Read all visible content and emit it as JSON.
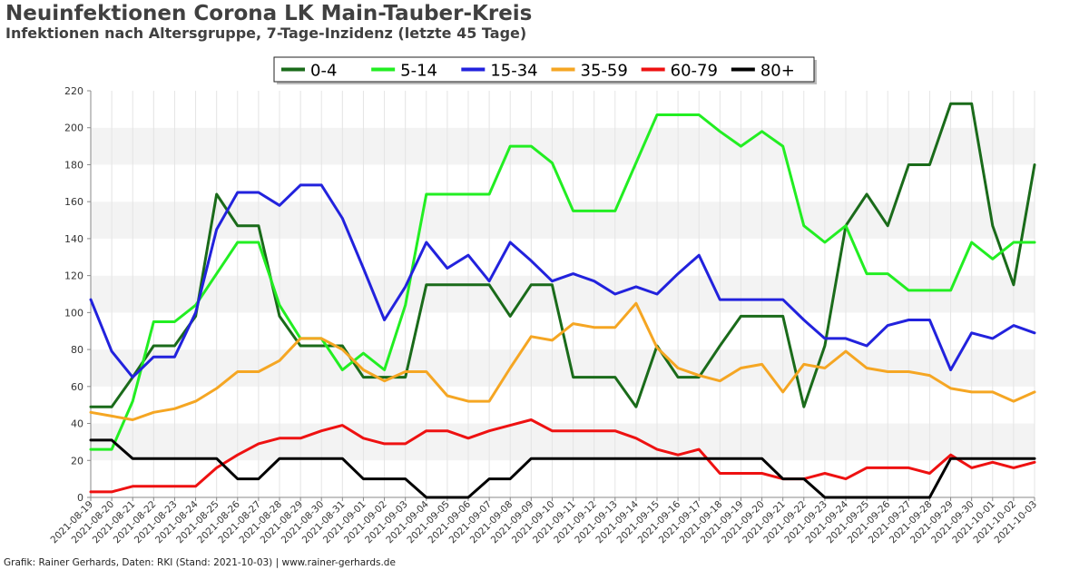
{
  "header": {
    "title": "Neuinfektionen Corona LK Main-Tauber-Kreis",
    "subtitle": "Infektionen nach Altersgruppe, 7-Tage-Inzidenz (letzte 45 Tage)"
  },
  "footer": {
    "credit": "Grafik: Rainer Gerhards, Daten: RKI (Stand: 2021-10-03) | www.rainer-gerhards.de"
  },
  "chart_data": {
    "type": "line",
    "title": "Neuinfektionen Corona LK Main-Tauber-Kreis",
    "subtitle": "Infektionen nach Altersgruppe, 7-Tage-Inzidenz (letzte 45 Tage)",
    "ylim": [
      0,
      220
    ],
    "yticks": [
      0,
      20,
      40,
      60,
      80,
      100,
      120,
      140,
      160,
      180,
      200,
      220
    ],
    "grid": "alternating horizontal bands",
    "legend_position": "top-center",
    "x": [
      "2021-08-19",
      "2021-08-20",
      "2021-08-21",
      "2021-08-22",
      "2021-08-23",
      "2021-08-24",
      "2021-08-25",
      "2021-08-26",
      "2021-08-27",
      "2021-08-28",
      "2021-08-29",
      "2021-08-30",
      "2021-08-31",
      "2021-09-01",
      "2021-09-02",
      "2021-09-03",
      "2021-09-04",
      "2021-09-05",
      "2021-09-06",
      "2021-09-07",
      "2021-09-08",
      "2021-09-09",
      "2021-09-10",
      "2021-09-11",
      "2021-09-12",
      "2021-09-13",
      "2021-09-14",
      "2021-09-15",
      "2021-09-16",
      "2021-09-17",
      "2021-09-18",
      "2021-09-19",
      "2021-09-20",
      "2021-09-21",
      "2021-09-22",
      "2021-09-23",
      "2021-09-24",
      "2021-09-25",
      "2021-09-26",
      "2021-09-27",
      "2021-09-28",
      "2021-09-29",
      "2021-09-30",
      "2021-10-01",
      "2021-10-02",
      "2021-10-03"
    ],
    "series": [
      {
        "name": "0-4",
        "color": "#1a6b1a",
        "values": [
          49,
          49,
          65,
          82,
          82,
          98,
          164,
          147,
          147,
          98,
          82,
          82,
          82,
          65,
          65,
          65,
          115,
          115,
          115,
          115,
          98,
          115,
          115,
          65,
          65,
          65,
          49,
          82,
          65,
          65,
          82,
          98,
          98,
          98,
          49,
          82,
          147,
          164,
          147,
          180,
          180,
          213,
          213,
          147,
          115,
          180
        ]
      },
      {
        "name": "5-14",
        "color": "#22ee22",
        "values": [
          26,
          26,
          52,
          95,
          95,
          104,
          121,
          138,
          138,
          104,
          86,
          86,
          69,
          78,
          69,
          104,
          164,
          164,
          164,
          164,
          190,
          190,
          181,
          155,
          155,
          155,
          181,
          207,
          207,
          207,
          198,
          190,
          198,
          190,
          147,
          138,
          147,
          121,
          121,
          112,
          112,
          112,
          138,
          129,
          138,
          138
        ]
      },
      {
        "name": "15-34",
        "color": "#2222dd",
        "values": [
          107,
          79,
          65,
          76,
          76,
          100,
          145,
          165,
          165,
          158,
          169,
          169,
          151,
          124,
          96,
          114,
          138,
          124,
          131,
          117,
          138,
          128,
          117,
          121,
          117,
          110,
          114,
          110,
          121,
          131,
          107,
          107,
          107,
          107,
          96,
          86,
          86,
          82,
          93,
          96,
          96,
          69,
          89,
          86,
          93,
          89
        ]
      },
      {
        "name": "35-59",
        "color": "#f5a623",
        "values": [
          46,
          44,
          42,
          46,
          48,
          52,
          59,
          68,
          68,
          74,
          86,
          86,
          80,
          69,
          63,
          68,
          68,
          55,
          52,
          52,
          70,
          87,
          85,
          94,
          92,
          92,
          105,
          81,
          70,
          66,
          63,
          70,
          72,
          57,
          72,
          70,
          79,
          70,
          68,
          68,
          66,
          59,
          57,
          57,
          52,
          57
        ]
      },
      {
        "name": "60-79",
        "color": "#ee1111",
        "values": [
          3,
          3,
          6,
          6,
          6,
          6,
          16,
          23,
          29,
          32,
          32,
          36,
          39,
          32,
          29,
          29,
          36,
          36,
          32,
          36,
          39,
          42,
          36,
          36,
          36,
          36,
          32,
          26,
          23,
          26,
          13,
          13,
          13,
          10,
          10,
          13,
          10,
          16,
          16,
          16,
          13,
          23,
          16,
          19,
          16,
          19
        ]
      },
      {
        "name": "80+",
        "color": "#000000",
        "values": [
          31,
          31,
          21,
          21,
          21,
          21,
          21,
          10,
          10,
          21,
          21,
          21,
          21,
          10,
          10,
          10,
          0,
          0,
          0,
          10,
          10,
          21,
          21,
          21,
          21,
          21,
          21,
          21,
          21,
          21,
          21,
          21,
          21,
          10,
          10,
          0,
          0,
          0,
          0,
          0,
          0,
          21,
          21,
          21,
          21,
          21
        ]
      }
    ]
  }
}
